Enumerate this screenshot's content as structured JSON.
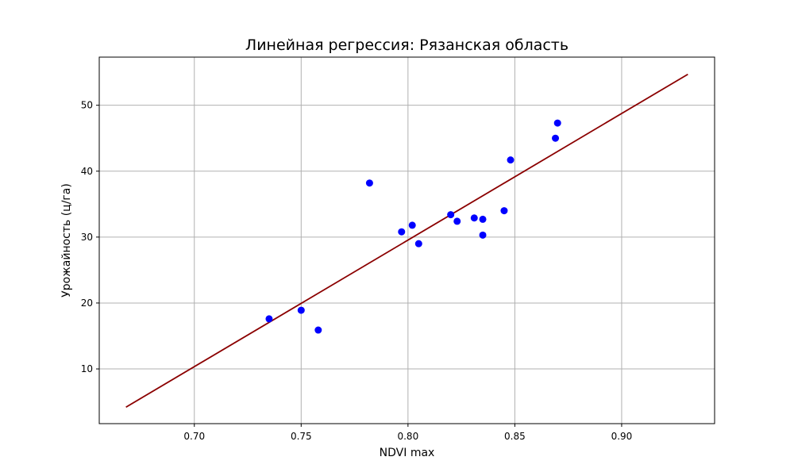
{
  "chart_data": {
    "type": "scatter",
    "title": "Линейная регрессия: Рязанская область",
    "xlabel": "NDVI max",
    "ylabel": "Урожайность (ц/га)",
    "xlim": [
      0.6555,
      0.9435
    ],
    "ylim": [
      1.7,
      57.3
    ],
    "xticks": [
      0.7,
      0.75,
      0.8,
      0.85,
      0.9
    ],
    "xtick_labels": [
      "0.70",
      "0.75",
      "0.80",
      "0.85",
      "0.90"
    ],
    "yticks": [
      10,
      20,
      30,
      40,
      50
    ],
    "ytick_labels": [
      "10",
      "20",
      "30",
      "40",
      "50"
    ],
    "grid": true,
    "series": [
      {
        "kind": "points",
        "color": "#0000ff",
        "points": [
          {
            "x": 0.735,
            "y": 17.6
          },
          {
            "x": 0.75,
            "y": 18.9
          },
          {
            "x": 0.758,
            "y": 15.9
          },
          {
            "x": 0.782,
            "y": 38.2
          },
          {
            "x": 0.797,
            "y": 30.8
          },
          {
            "x": 0.802,
            "y": 31.8
          },
          {
            "x": 0.805,
            "y": 29.0
          },
          {
            "x": 0.82,
            "y": 33.4
          },
          {
            "x": 0.823,
            "y": 32.4
          },
          {
            "x": 0.831,
            "y": 32.9
          },
          {
            "x": 0.835,
            "y": 32.7
          },
          {
            "x": 0.835,
            "y": 30.3
          },
          {
            "x": 0.845,
            "y": 34.0
          },
          {
            "x": 0.848,
            "y": 41.7
          },
          {
            "x": 0.869,
            "y": 45.0
          },
          {
            "x": 0.87,
            "y": 47.3
          }
        ]
      },
      {
        "kind": "regression_line",
        "color": "#8b0000",
        "x": [
          0.668,
          0.931
        ],
        "y": [
          4.2,
          54.7
        ]
      }
    ]
  }
}
